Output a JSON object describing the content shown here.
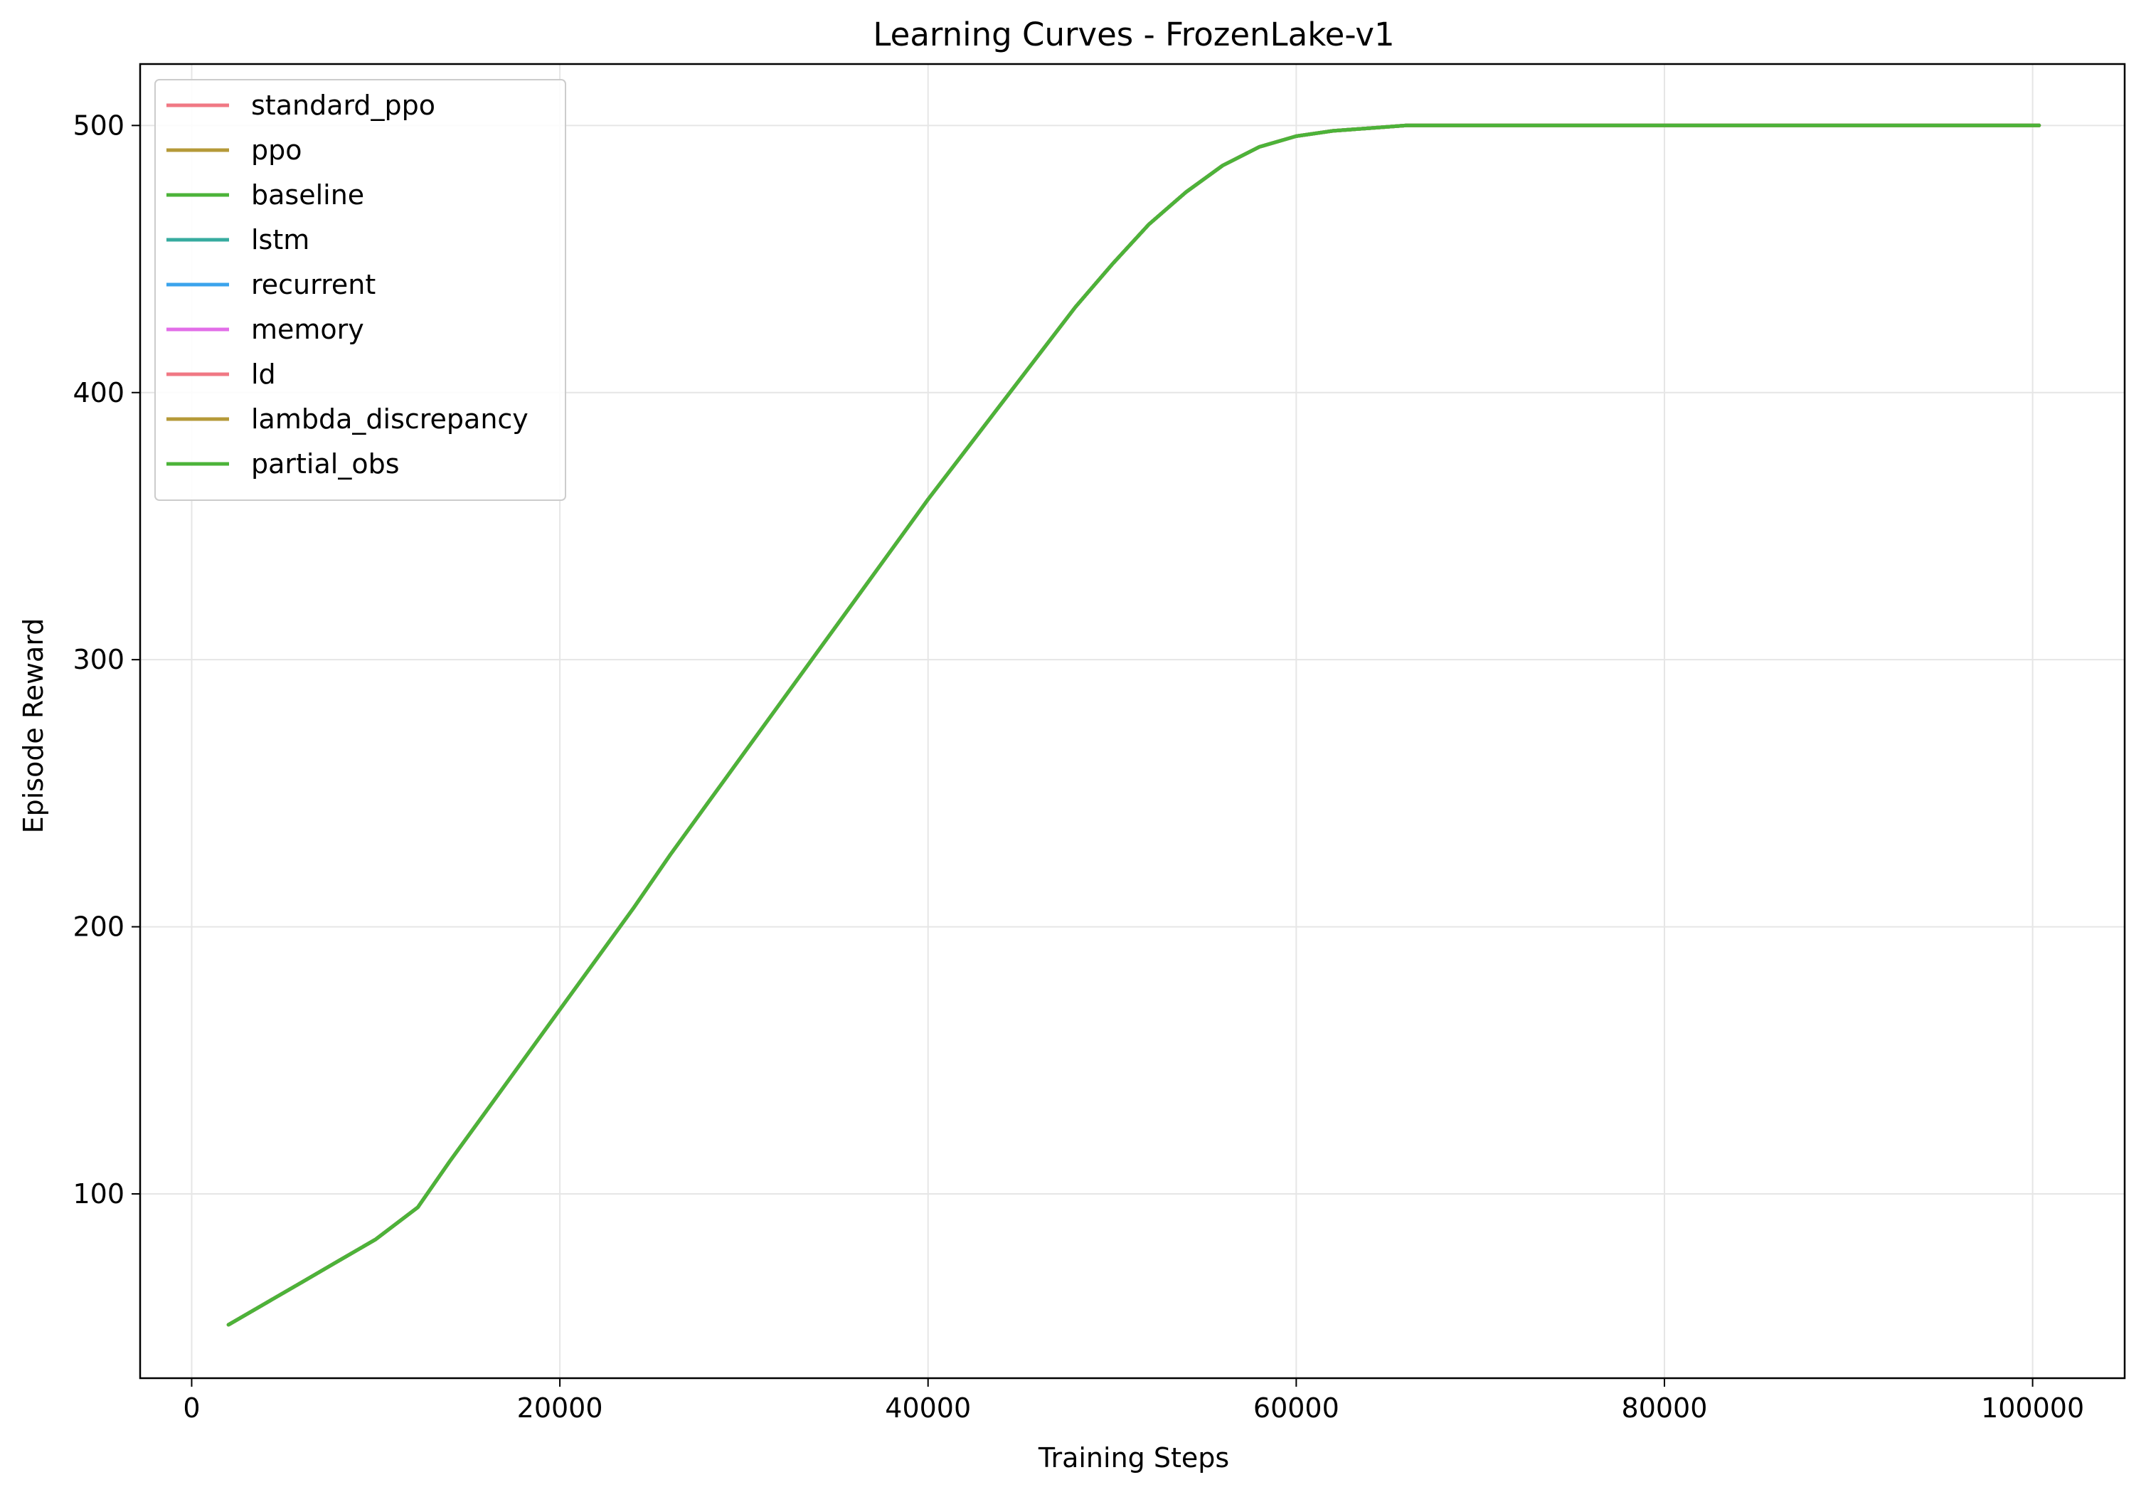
{
  "chart_data": {
    "type": "line",
    "title": "Learning Curves - FrozenLake-v1",
    "xlabel": "Training Steps",
    "ylabel": "Episode Reward",
    "xlim": [
      -2800,
      105000
    ],
    "ylim": [
      31,
      523
    ],
    "xticks": [
      0,
      20000,
      40000,
      60000,
      80000,
      100000
    ],
    "yticks": [
      100,
      200,
      300,
      400,
      500
    ],
    "grid": true,
    "legend_position": "upper-left",
    "x": [
      2000,
      4000,
      6000,
      8000,
      10000,
      12288,
      14000,
      16000,
      18000,
      20000,
      22000,
      24000,
      26000,
      28000,
      30000,
      32000,
      34000,
      36000,
      38000,
      40000,
      42000,
      44000,
      46000,
      48000,
      50000,
      52000,
      54000,
      56000,
      58000,
      60000,
      62000,
      64000,
      66000,
      68000,
      70000,
      72000,
      76000,
      80000,
      84000,
      88000,
      92000,
      96000,
      100352
    ],
    "series": [
      {
        "name": "standard_ppo",
        "color": "#f07884",
        "values": [
          51,
          59,
          67,
          75,
          83,
          95,
          112,
          131,
          150,
          169,
          188,
          207,
          227,
          246,
          265,
          284,
          303,
          322,
          341,
          360,
          378,
          396,
          414,
          432,
          448,
          463,
          475,
          485,
          492,
          496,
          498,
          499,
          500,
          500,
          500,
          500,
          500,
          500,
          500,
          500,
          500,
          500,
          500
        ]
      },
      {
        "name": "ppo",
        "color": "#b59a38",
        "values": [
          51,
          59,
          67,
          75,
          83,
          95,
          112,
          131,
          150,
          169,
          188,
          207,
          227,
          246,
          265,
          284,
          303,
          322,
          341,
          360,
          378,
          396,
          414,
          432,
          448,
          463,
          475,
          485,
          492,
          496,
          498,
          499,
          500,
          500,
          500,
          500,
          500,
          500,
          500,
          500,
          500,
          500,
          500
        ]
      },
      {
        "name": "baseline",
        "color": "#4cb339",
        "values": [
          51,
          59,
          67,
          75,
          83,
          95,
          112,
          131,
          150,
          169,
          188,
          207,
          227,
          246,
          265,
          284,
          303,
          322,
          341,
          360,
          378,
          396,
          414,
          432,
          448,
          463,
          475,
          485,
          492,
          496,
          498,
          499,
          500,
          500,
          500,
          500,
          500,
          500,
          500,
          500,
          500,
          500,
          500
        ]
      },
      {
        "name": "lstm",
        "color": "#36ab9f",
        "values": [
          51,
          59,
          67,
          75,
          83,
          95,
          112,
          131,
          150,
          169,
          188,
          207,
          227,
          246,
          265,
          284,
          303,
          322,
          341,
          360,
          378,
          396,
          414,
          432,
          448,
          463,
          475,
          485,
          492,
          496,
          498,
          499,
          500,
          500,
          500,
          500,
          500,
          500,
          500,
          500,
          500,
          500,
          500
        ]
      },
      {
        "name": "recurrent",
        "color": "#3ba3ec",
        "values": [
          51,
          59,
          67,
          75,
          83,
          95,
          112,
          131,
          150,
          169,
          188,
          207,
          227,
          246,
          265,
          284,
          303,
          322,
          341,
          360,
          378,
          396,
          414,
          432,
          448,
          463,
          475,
          485,
          492,
          496,
          498,
          499,
          500,
          500,
          500,
          500,
          500,
          500,
          500,
          500,
          500,
          500,
          500
        ]
      },
      {
        "name": "memory",
        "color": "#e26ee8",
        "values": [
          51,
          59,
          67,
          75,
          83,
          95,
          112,
          131,
          150,
          169,
          188,
          207,
          227,
          246,
          265,
          284,
          303,
          322,
          341,
          360,
          378,
          396,
          414,
          432,
          448,
          463,
          475,
          485,
          492,
          496,
          498,
          499,
          500,
          500,
          500,
          500,
          500,
          500,
          500,
          500,
          500,
          500,
          500
        ]
      },
      {
        "name": "ld",
        "color": "#f07884",
        "values": [
          51,
          59,
          67,
          75,
          83,
          95,
          112,
          131,
          150,
          169,
          188,
          207,
          227,
          246,
          265,
          284,
          303,
          322,
          341,
          360,
          378,
          396,
          414,
          432,
          448,
          463,
          475,
          485,
          492,
          496,
          498,
          499,
          500,
          500,
          500,
          500,
          500,
          500,
          500,
          500,
          500,
          500,
          500
        ]
      },
      {
        "name": "lambda_discrepancy",
        "color": "#b59a38",
        "values": [
          51,
          59,
          67,
          75,
          83,
          95,
          112,
          131,
          150,
          169,
          188,
          207,
          227,
          246,
          265,
          284,
          303,
          322,
          341,
          360,
          378,
          396,
          414,
          432,
          448,
          463,
          475,
          485,
          492,
          496,
          498,
          499,
          500,
          500,
          500,
          500,
          500,
          500,
          500,
          500,
          500,
          500,
          500
        ]
      },
      {
        "name": "partial_obs",
        "color": "#4cb339",
        "values": [
          51,
          59,
          67,
          75,
          83,
          95,
          112,
          131,
          150,
          169,
          188,
          207,
          227,
          246,
          265,
          284,
          303,
          322,
          341,
          360,
          378,
          396,
          414,
          432,
          448,
          463,
          475,
          485,
          492,
          496,
          498,
          499,
          500,
          500,
          500,
          500,
          500,
          500,
          500,
          500,
          500,
          500,
          500
        ]
      }
    ]
  }
}
